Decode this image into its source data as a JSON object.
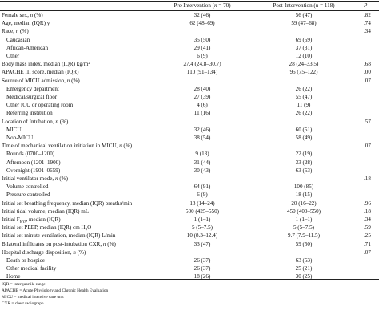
{
  "header": {
    "col1": "Pre-Intervention (n = 70)",
    "col2": "Post-Intervention (n = 118)",
    "col3": "P"
  },
  "rows": [
    {
      "label": "Female sex, n (%)",
      "indent": false,
      "pre": "32 (46)",
      "post": "56 (47)",
      "p": ".82"
    },
    {
      "label": "Age, median (IQR) y",
      "indent": false,
      "pre": "62 (48–69)",
      "post": "59 (47–68)",
      "p": ".74"
    },
    {
      "label": "Race, n (%)",
      "indent": false,
      "pre": "",
      "post": "",
      "p": ".34"
    },
    {
      "label": "Caucasian",
      "indent": true,
      "pre": "35 (50)",
      "post": "69 (59)",
      "p": ""
    },
    {
      "label": "African-American",
      "indent": true,
      "pre": "29 (41)",
      "post": "37 (31)",
      "p": ""
    },
    {
      "label": "Other",
      "indent": true,
      "pre": "6 (9)",
      "post": "12 (10)",
      "p": ""
    },
    {
      "label": "Body mass index, median (IQR) kg/m²",
      "indent": false,
      "pre": "27.4 (24.8–30.7)",
      "post": "28 (24–33.5)",
      "p": ".68"
    },
    {
      "label": "APACHE III score, median (IQR)",
      "indent": false,
      "pre": "110 (91–134)",
      "post": "95 (75–122)",
      "p": ".00"
    },
    {
      "label": "Source of MICU admission, n (%)",
      "indent": false,
      "pre": "",
      "post": "",
      "p": ".07"
    },
    {
      "label": "Emergency department",
      "indent": true,
      "pre": "28 (40)",
      "post": "26 (22)",
      "p": ""
    },
    {
      "label": "Medical/surgical floor",
      "indent": true,
      "pre": "27 (39)",
      "post": "55 (47)",
      "p": ""
    },
    {
      "label": "Other ICU or operating room",
      "indent": true,
      "pre": "4 (6)",
      "post": "11 (9)",
      "p": ""
    },
    {
      "label": "Referring institution",
      "indent": true,
      "pre": "11 (16)",
      "post": "26 (22)",
      "p": ""
    },
    {
      "label": "Location of Intubation, n (%)",
      "indent": false,
      "pre": "",
      "post": "",
      "p": ".57"
    },
    {
      "label": "MICU",
      "indent": true,
      "pre": "32 (46)",
      "post": "60 (51)",
      "p": ""
    },
    {
      "label": "Non-MICU",
      "indent": true,
      "pre": "38 (54)",
      "post": "58 (49)",
      "p": ""
    },
    {
      "label": "Time of mechanical ventilation initiation in MICU, n (%)",
      "indent": false,
      "pre": "",
      "post": "",
      "p": ".07"
    },
    {
      "label": "Rounds (0700–1200)",
      "indent": true,
      "pre": "9 (13)",
      "post": "22 (19)",
      "p": ""
    },
    {
      "label": "Afternoon (1201–1900)",
      "indent": true,
      "pre": "31 (44)",
      "post": "33 (28)",
      "p": ""
    },
    {
      "label": "Overnight (1901–0659)",
      "indent": true,
      "pre": "30 (43)",
      "post": "63 (53)",
      "p": ""
    },
    {
      "label": "Initial ventilator mode, n (%)",
      "indent": false,
      "pre": "",
      "post": "",
      "p": ".18"
    },
    {
      "label": "Volume controlled",
      "indent": true,
      "pre": "64 (91)",
      "post": "100 (85)",
      "p": ""
    },
    {
      "label": "Pressure controlled",
      "indent": true,
      "pre": "6 (9)",
      "post": "18 (15)",
      "p": ""
    },
    {
      "label": "Initial set breathing frequency, median (IQR) breaths/min",
      "indent": false,
      "pre": "18 (14–24)",
      "post": "20 (16–22)",
      "p": ".96"
    },
    {
      "label": "Initial tidal volume, median (IQR) mL",
      "indent": false,
      "pre": "500 (425–550)",
      "post": "450 (400–550)",
      "p": ".18"
    },
    {
      "label": "Initial F",
      "sub": "IO2",
      "suffix": ", median (IQR)",
      "indent": false,
      "pre": "1 (1–1)",
      "post": "1 (1–1)",
      "p": ".34"
    },
    {
      "label": "Initial set PEEP, median (IQR) cm H",
      "sub": "2",
      "suffix": "O",
      "indent": false,
      "pre": "5 (5–7.5)",
      "post": "5 (5–7.5)",
      "p": ".59"
    },
    {
      "label": "Initial set minute ventilation, median (IQR) L/min",
      "indent": false,
      "pre": "10 (8.3–12.4)",
      "post": "9.7 (7.9–11.5)",
      "p": ".25"
    },
    {
      "label": "Bilateral infiltrates on post-intubation CXR, n (%)",
      "indent": false,
      "pre": "33 (47)",
      "post": "59 (50)",
      "p": ".71"
    },
    {
      "label": "Hospital discharge disposition, n (%)",
      "indent": false,
      "pre": "",
      "post": "",
      "p": ".07"
    },
    {
      "label": "Death or hospice",
      "indent": true,
      "pre": "26 (37)",
      "post": "63 (53)",
      "p": ""
    },
    {
      "label": "Other medical facility",
      "indent": true,
      "pre": "26 (37)",
      "post": "25 (21)",
      "p": ""
    },
    {
      "label": "Home",
      "indent": true,
      "pre": "18 (26)",
      "post": "30 (25)",
      "p": ""
    }
  ],
  "footnotes": [
    "IQR = interquartile range",
    "APACHE = Acute Physiology and Chronic Health Evaluation",
    "MICU = medical intensive care unit",
    "CXR = chest radiograph"
  ]
}
